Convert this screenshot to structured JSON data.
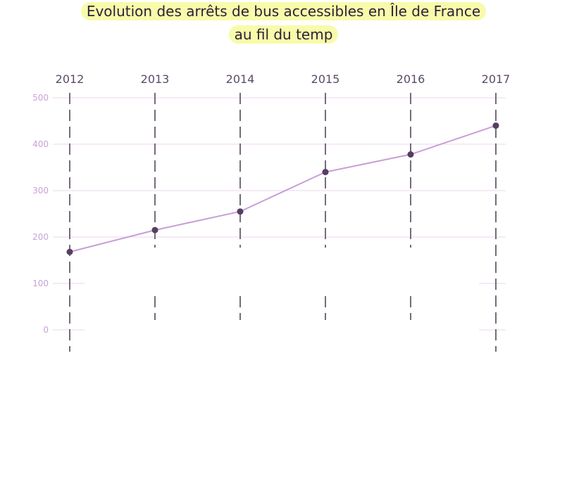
{
  "chart": {
    "title_line1": "Evolution des arrêts de bus accessibles en Île de France",
    "title_line2": "au fil du temp"
  },
  "colors": {
    "highlight": "#f8fbaa",
    "line": "#c89fd6",
    "point": "#563e60",
    "grid": "#edd5ec",
    "dash": "#4a3a52",
    "tick_text": "#c7a3d6",
    "year_text": "#5b4a68"
  },
  "chart_data": {
    "type": "line",
    "title": "Evolution des arrêts de bus accessibles en Île de France au fil du temp",
    "x": [
      "2012",
      "2013",
      "2014",
      "2015",
      "2016",
      "2017"
    ],
    "y": [
      168,
      215,
      255,
      340,
      378,
      440
    ],
    "ylim": [
      0,
      500
    ],
    "yticks": [
      0,
      100,
      200,
      300,
      400,
      500
    ],
    "xlabel": "",
    "ylabel": "",
    "grid": true,
    "x_axis_position": "top"
  }
}
